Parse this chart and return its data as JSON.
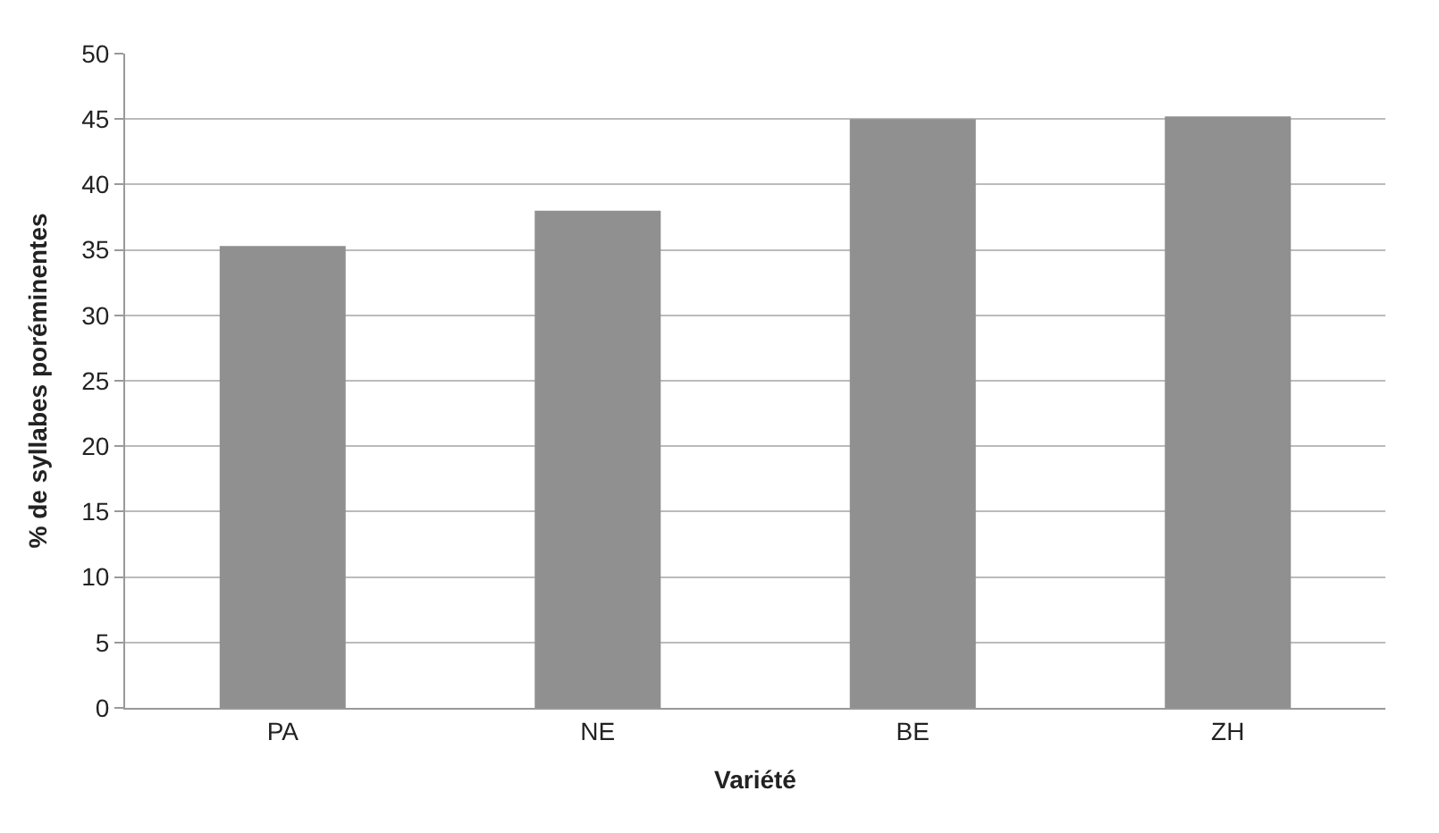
{
  "chart_data": {
    "type": "bar",
    "xlabel": "Variété",
    "ylabel": "% de syllabes poréminentes",
    "categories": [
      "PA",
      "NE",
      "BE",
      "ZH"
    ],
    "values": [
      35.3,
      38.0,
      45.0,
      45.2
    ],
    "color": "#909090",
    "ylim": [
      0,
      50
    ],
    "yticks": [
      0,
      5,
      10,
      15,
      20,
      25,
      30,
      35,
      40,
      45,
      50
    ],
    "grid": "y"
  }
}
